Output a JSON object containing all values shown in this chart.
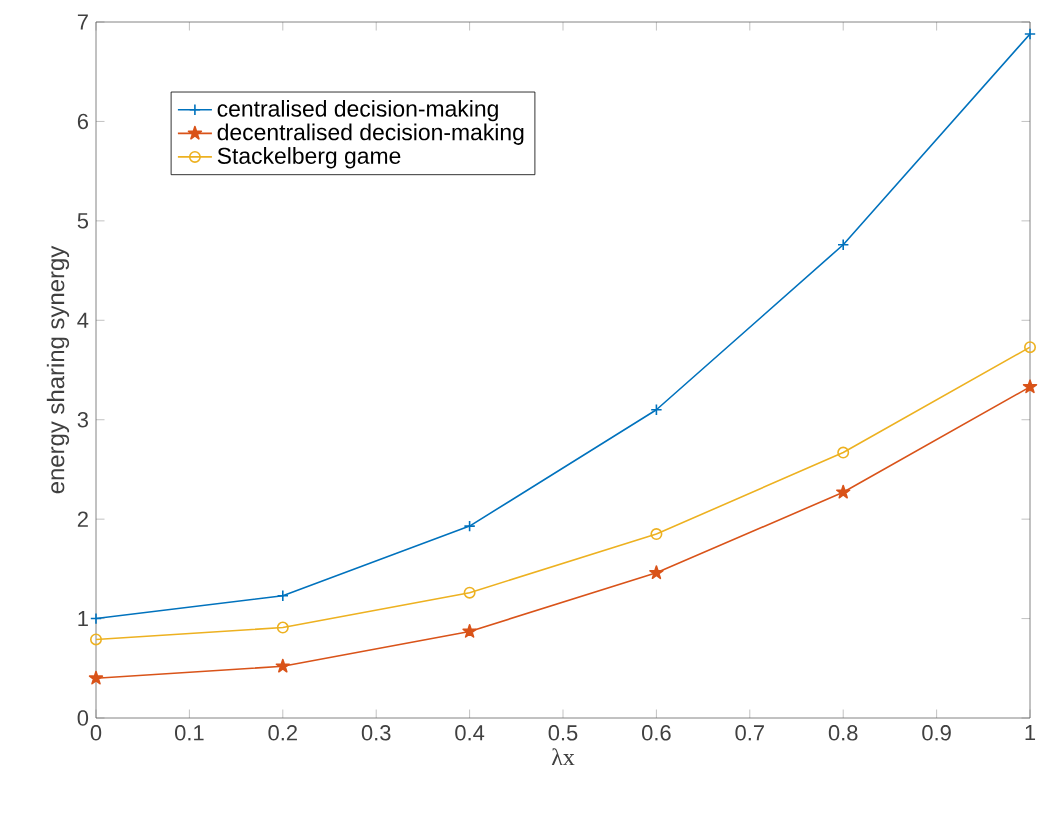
{
  "chart_data": {
    "type": "line",
    "xlabel": "λx",
    "ylabel": "energy sharing synergy",
    "x": [
      0,
      0.2,
      0.4,
      0.6,
      0.8,
      1
    ],
    "series": [
      {
        "name": "centralised decision-making",
        "color": "#0072bd",
        "marker": "cross",
        "values": [
          1.0,
          1.23,
          1.93,
          3.1,
          4.76,
          6.88
        ]
      },
      {
        "name": "decentralised decision-making",
        "color": "#d95319",
        "marker": "star",
        "values": [
          0.4,
          0.52,
          0.87,
          1.46,
          2.27,
          3.33
        ]
      },
      {
        "name": "Stackelberg game",
        "color": "#edb120",
        "marker": "circle",
        "values": [
          0.79,
          0.91,
          1.26,
          1.85,
          2.67,
          3.73
        ]
      }
    ],
    "xlim": [
      0,
      1
    ],
    "ylim": [
      0,
      7
    ],
    "xticks": [
      0,
      0.1,
      0.2,
      0.3,
      0.4,
      0.5,
      0.6,
      0.7,
      0.8,
      0.9,
      1
    ],
    "yticks": [
      0,
      1,
      2,
      3,
      4,
      5,
      6,
      7
    ],
    "grid": false,
    "legend": "top left",
    "line_style": "solid"
  }
}
